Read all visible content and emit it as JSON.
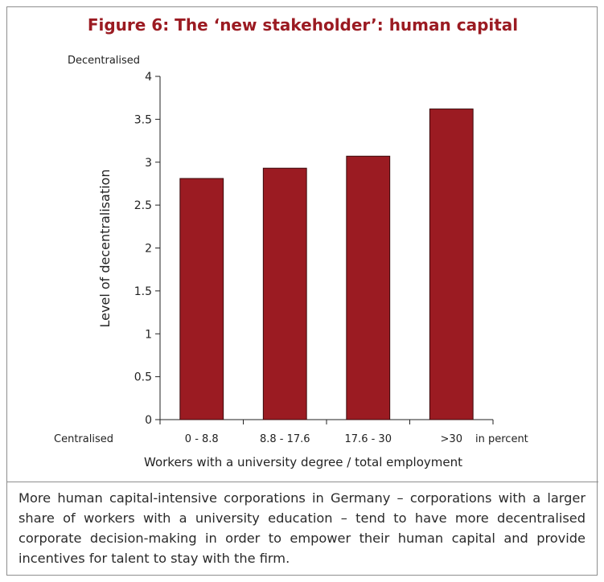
{
  "figure": {
    "title": "Figure 6: The ‘new stakeholder’: human capital",
    "caption": "More human capital-intensive corporations in Germany – corporations with a larger share of workers with a university education – tend to have more decen­tralised corporate decision-making in order to empower their human capital and provide incentives for talent to stay with the firm."
  },
  "colors": {
    "title": "#9b1b22",
    "bar_fill": "#9b1b22",
    "bar_stroke": "#3a0a0c",
    "frame": "#8e8e8e"
  },
  "chart_data": {
    "type": "bar",
    "title": "",
    "categories": [
      "0 - 8.8",
      "8.8 - 17.6",
      "17.6 - 30",
      ">30"
    ],
    "values": [
      2.81,
      2.93,
      3.07,
      3.62
    ],
    "ylabel": "Level of decentralisation",
    "xlabel": "Workers with a university degree / total employment",
    "ylim": [
      0,
      4
    ],
    "yticks": [
      "0",
      "0.5",
      "1",
      "1.5",
      "2",
      "2.5",
      "3",
      "3.5",
      "4"
    ],
    "y_top_annotation": "Decentralised",
    "y_bottom_annotation": "Centralised",
    "x_unit_annotation": "in percent",
    "grid": false,
    "legend": "none"
  }
}
